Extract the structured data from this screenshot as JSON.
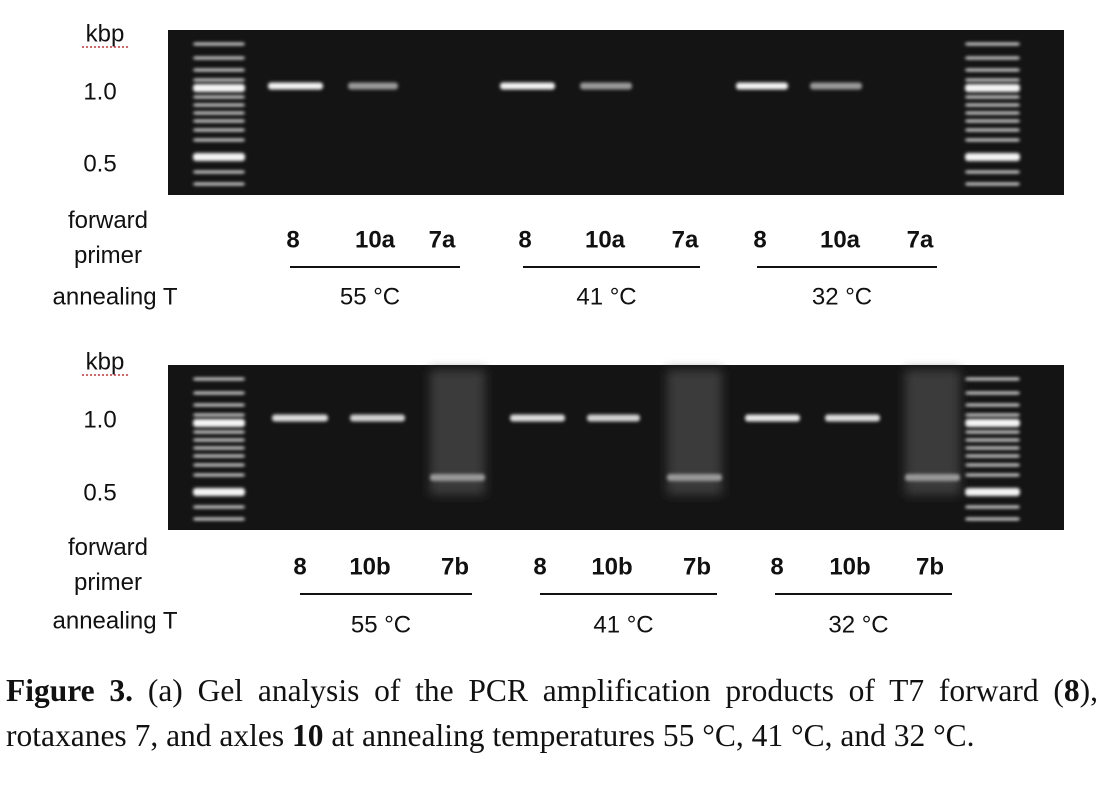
{
  "panels": [
    {
      "kbp": "kbp",
      "marker_labels": [
        "1.0",
        "0.5"
      ],
      "primer_label": "forward primer",
      "annealing_label": "annealing T",
      "groups": [
        {
          "lanes": [
            "8",
            "10a",
            "7a"
          ],
          "temperature": "55 °C"
        },
        {
          "lanes": [
            "8",
            "10a",
            "7a"
          ],
          "temperature": "41 °C"
        },
        {
          "lanes": [
            "8",
            "10a",
            "7a"
          ],
          "temperature": "32 °C"
        }
      ]
    },
    {
      "kbp": "kbp",
      "marker_labels": [
        "1.0",
        "0.5"
      ],
      "primer_label": "forward primer",
      "annealing_label": "annealing T",
      "groups": [
        {
          "lanes": [
            "8",
            "10b",
            "7b"
          ],
          "temperature": "55 °C"
        },
        {
          "lanes": [
            "8",
            "10b",
            "7b"
          ],
          "temperature": "41 °C"
        },
        {
          "lanes": [
            "8",
            "10b",
            "7b"
          ],
          "temperature": "32 °C"
        }
      ]
    }
  ],
  "caption": {
    "label": "Figure 3.",
    "parts": [
      " (a) Gel analysis of the PCR amplification products of T7 forward (",
      "8",
      "), rotaxanes 7, and axles ",
      "10",
      " at annealing temperatures 55 °C, 41 °C, and 32 °C."
    ]
  }
}
